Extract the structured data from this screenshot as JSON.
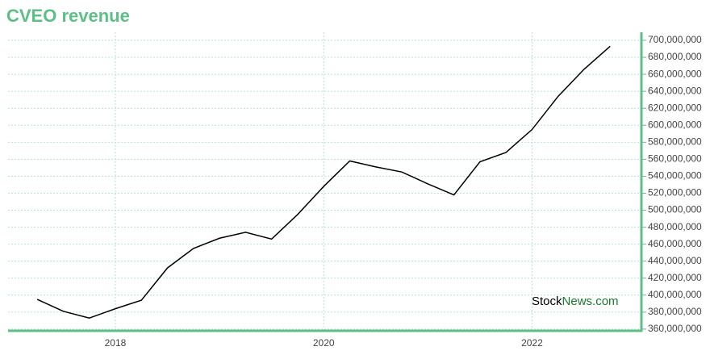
{
  "chart_data": {
    "type": "line",
    "title": "CVEO revenue",
    "watermark": [
      "Stock",
      "News.com"
    ],
    "x": [
      2017.25,
      2017.5,
      2017.75,
      2018,
      2018.25,
      2018.5,
      2018.75,
      2019,
      2019.25,
      2019.5,
      2019.75,
      2020,
      2020.25,
      2020.5,
      2020.75,
      2021,
      2021.25,
      2021.5,
      2021.75,
      2022,
      2022.25,
      2022.5,
      2022.75
    ],
    "series": [
      {
        "name": "Revenue",
        "color": "#000000",
        "values": [
          395000000,
          381000000,
          373000000,
          384000000,
          394000000,
          432000000,
          455000000,
          467000000,
          474000000,
          466000000,
          495000000,
          528000000,
          558000000,
          551000000,
          545000000,
          531000000,
          518000000,
          557000000,
          568000000,
          595000000,
          634000000,
          666000000,
          693000000
        ]
      }
    ],
    "xlim": [
      2016.97,
      2023.05
    ],
    "xticks": [
      2018,
      2020,
      2022
    ],
    "ylim": [
      358000000,
      709500000
    ],
    "yticks": [
      {
        "value": 360000000,
        "label": "360,000,000"
      },
      {
        "value": 380000000,
        "label": "380,000,000"
      },
      {
        "value": 400000000,
        "label": "400,000,000"
      },
      {
        "value": 420000000,
        "label": "420,000,000"
      },
      {
        "value": 440000000,
        "label": "440,000,000"
      },
      {
        "value": 460000000,
        "label": "460,000,000"
      },
      {
        "value": 480000000,
        "label": "480,000,000"
      },
      {
        "value": 500000000,
        "label": "500,000,000"
      },
      {
        "value": 520000000,
        "label": "520,000,000"
      },
      {
        "value": 540000000,
        "label": "540,000,000"
      },
      {
        "value": 560000000,
        "label": "560,000,000"
      },
      {
        "value": 580000000,
        "label": "580,000,000"
      },
      {
        "value": 600000000,
        "label": "600,000,000"
      },
      {
        "value": 620000000,
        "label": "620,000,000"
      },
      {
        "value": 640000000,
        "label": "640,000,000"
      },
      {
        "value": 660000000,
        "label": "660,000,000"
      },
      {
        "value": 680000000,
        "label": "680,000,000"
      },
      {
        "value": 700000000,
        "label": "700,000,000"
      }
    ],
    "grid": true,
    "axis_color": "#5cbf85"
  }
}
